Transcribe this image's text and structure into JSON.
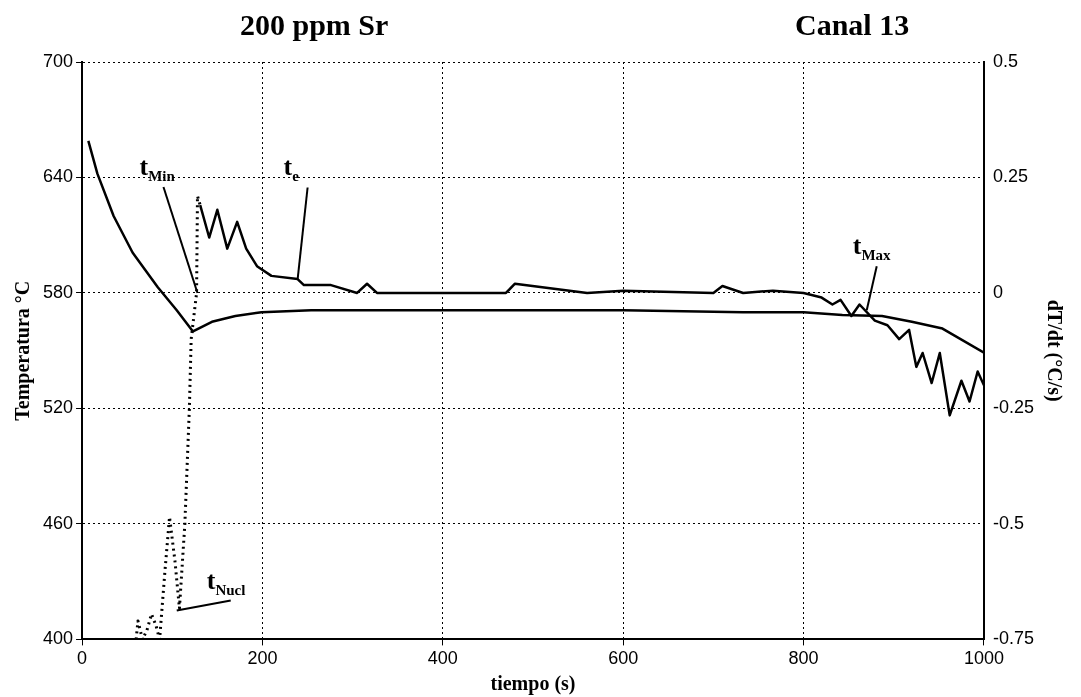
{
  "chart_data": {
    "type": "line",
    "title": "200 ppm  Sr",
    "subtitle": "Canal 13",
    "xlabel": "tiempo (s)",
    "ylabel": "Temperatura °C",
    "y2label": "dT/dt (°C/s)",
    "xlim": [
      0,
      1000
    ],
    "xticks": [
      0,
      200,
      400,
      600,
      800,
      1000
    ],
    "ylim": [
      400,
      700
    ],
    "yticks": [
      400,
      460,
      520,
      580,
      640,
      700
    ],
    "y2lim": [
      -0.75,
      0.5
    ],
    "y2ticks": [
      -0.75,
      -0.5,
      -0.25,
      0,
      0.25,
      0.5
    ],
    "grid": true,
    "legend": false,
    "marker": "none",
    "series": [
      {
        "color": "#000000",
        "line_style": "solid",
        "x": [
          7,
          17,
          35,
          56,
          84,
          105,
          123,
          144,
          170,
          199,
          254,
          400,
          600,
          733,
          800,
          843,
          887,
          920,
          954,
          1000
        ],
        "values": [
          659,
          642,
          620,
          601,
          583,
          571,
          560,
          565,
          568,
          570,
          571,
          571,
          571,
          570,
          570,
          568.5,
          568,
          565,
          561.5,
          549
        ]
      },
      {
        "color": "#000000",
        "axis": "y2",
        "line_style": "dotted",
        "x": [
          60,
          62,
          67,
          72,
          77,
          82,
          86,
          92,
          97,
          103,
          108,
          114,
          119,
          121,
          127,
          128,
          131
        ],
        "values": [
          -0.75,
          -0.71,
          -0.75,
          -0.73,
          -0.695,
          -0.72,
          -0.75,
          -0.6,
          -0.485,
          -0.58,
          -0.683,
          -0.5,
          -0.25,
          -0.1,
          0,
          0.21,
          0.19
        ]
      },
      {
        "color": "#000000",
        "axis": "y2",
        "line_style": "solid",
        "x": [
          131,
          141,
          150,
          161,
          172,
          182,
          194,
          210,
          239,
          246,
          276,
          305,
          316,
          327,
          400,
          470,
          480,
          560,
          600,
          700,
          710,
          733,
          766,
          800,
          820,
          832,
          841,
          853,
          862,
          879,
          893,
          906,
          917,
          925,
          932,
          942,
          951,
          962,
          975,
          984,
          993,
          1000
        ],
        "values": [
          0.19,
          0.12,
          0.18,
          0.096,
          0.154,
          0.096,
          0.058,
          0.037,
          0.03,
          0.017,
          0.017,
          0,
          0.02,
          0,
          0,
          0,
          0.02,
          0,
          0.005,
          0,
          0.015,
          0,
          0.005,
          0,
          -0.01,
          -0.025,
          -0.015,
          -0.05,
          -0.025,
          -0.06,
          -0.07,
          -0.1,
          -0.08,
          -0.16,
          -0.13,
          -0.195,
          -0.13,
          -0.265,
          -0.19,
          -0.235,
          -0.17,
          -0.2
        ]
      }
    ],
    "annotations": [
      {
        "text": "t$_{Min}$",
        "x": 128,
        "y": 580
      },
      {
        "text": "t$_{e}$",
        "x": 239,
        "y": 587
      },
      {
        "text": "t$_{Max}$",
        "x": 870,
        "y": 571
      },
      {
        "text": "t$_{Nucl}$",
        "x": 105,
        "y": 415
      }
    ]
  }
}
